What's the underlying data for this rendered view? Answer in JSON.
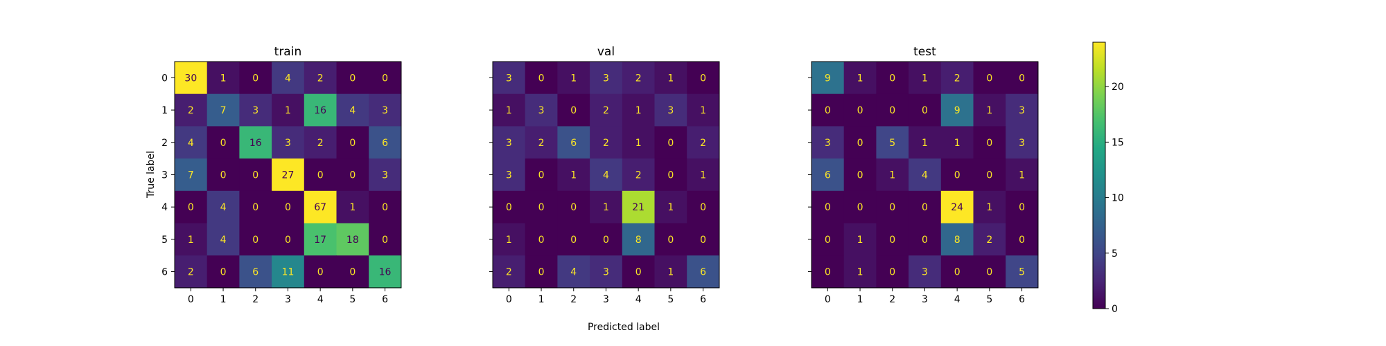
{
  "chart_data": {
    "type": "heatmap",
    "subtype": "confusion-matrix",
    "colormap": "viridis",
    "xlabel": "Predicted label",
    "ylabel": "True label",
    "classes": [
      "0",
      "1",
      "2",
      "3",
      "4",
      "5",
      "6"
    ],
    "color_range": [
      0,
      24
    ],
    "colorbar_ticks": [
      0,
      5,
      10,
      15,
      20
    ],
    "panels": [
      {
        "title": "train",
        "matrix": [
          [
            30,
            1,
            0,
            4,
            2,
            0,
            0
          ],
          [
            2,
            7,
            3,
            1,
            16,
            4,
            3
          ],
          [
            4,
            0,
            16,
            3,
            2,
            0,
            6
          ],
          [
            7,
            0,
            0,
            27,
            0,
            0,
            3
          ],
          [
            0,
            4,
            0,
            0,
            67,
            1,
            0
          ],
          [
            1,
            4,
            0,
            0,
            17,
            18,
            0
          ],
          [
            2,
            0,
            6,
            11,
            0,
            0,
            16
          ]
        ]
      },
      {
        "title": "val",
        "matrix": [
          [
            3,
            0,
            1,
            3,
            2,
            1,
            0
          ],
          [
            1,
            3,
            0,
            2,
            1,
            3,
            1
          ],
          [
            3,
            2,
            6,
            2,
            1,
            0,
            2
          ],
          [
            3,
            0,
            1,
            4,
            2,
            0,
            1
          ],
          [
            0,
            0,
            0,
            1,
            21,
            1,
            0
          ],
          [
            1,
            0,
            0,
            0,
            8,
            0,
            0
          ],
          [
            2,
            0,
            4,
            3,
            0,
            1,
            6
          ]
        ]
      },
      {
        "title": "test",
        "matrix": [
          [
            9,
            1,
            0,
            1,
            2,
            0,
            0
          ],
          [
            0,
            0,
            0,
            0,
            9,
            1,
            3
          ],
          [
            3,
            0,
            5,
            1,
            1,
            0,
            3
          ],
          [
            6,
            0,
            1,
            4,
            0,
            0,
            1
          ],
          [
            0,
            0,
            0,
            0,
            24,
            1,
            0
          ],
          [
            0,
            1,
            0,
            0,
            8,
            2,
            0
          ],
          [
            0,
            1,
            0,
            3,
            0,
            0,
            5
          ]
        ]
      }
    ]
  }
}
